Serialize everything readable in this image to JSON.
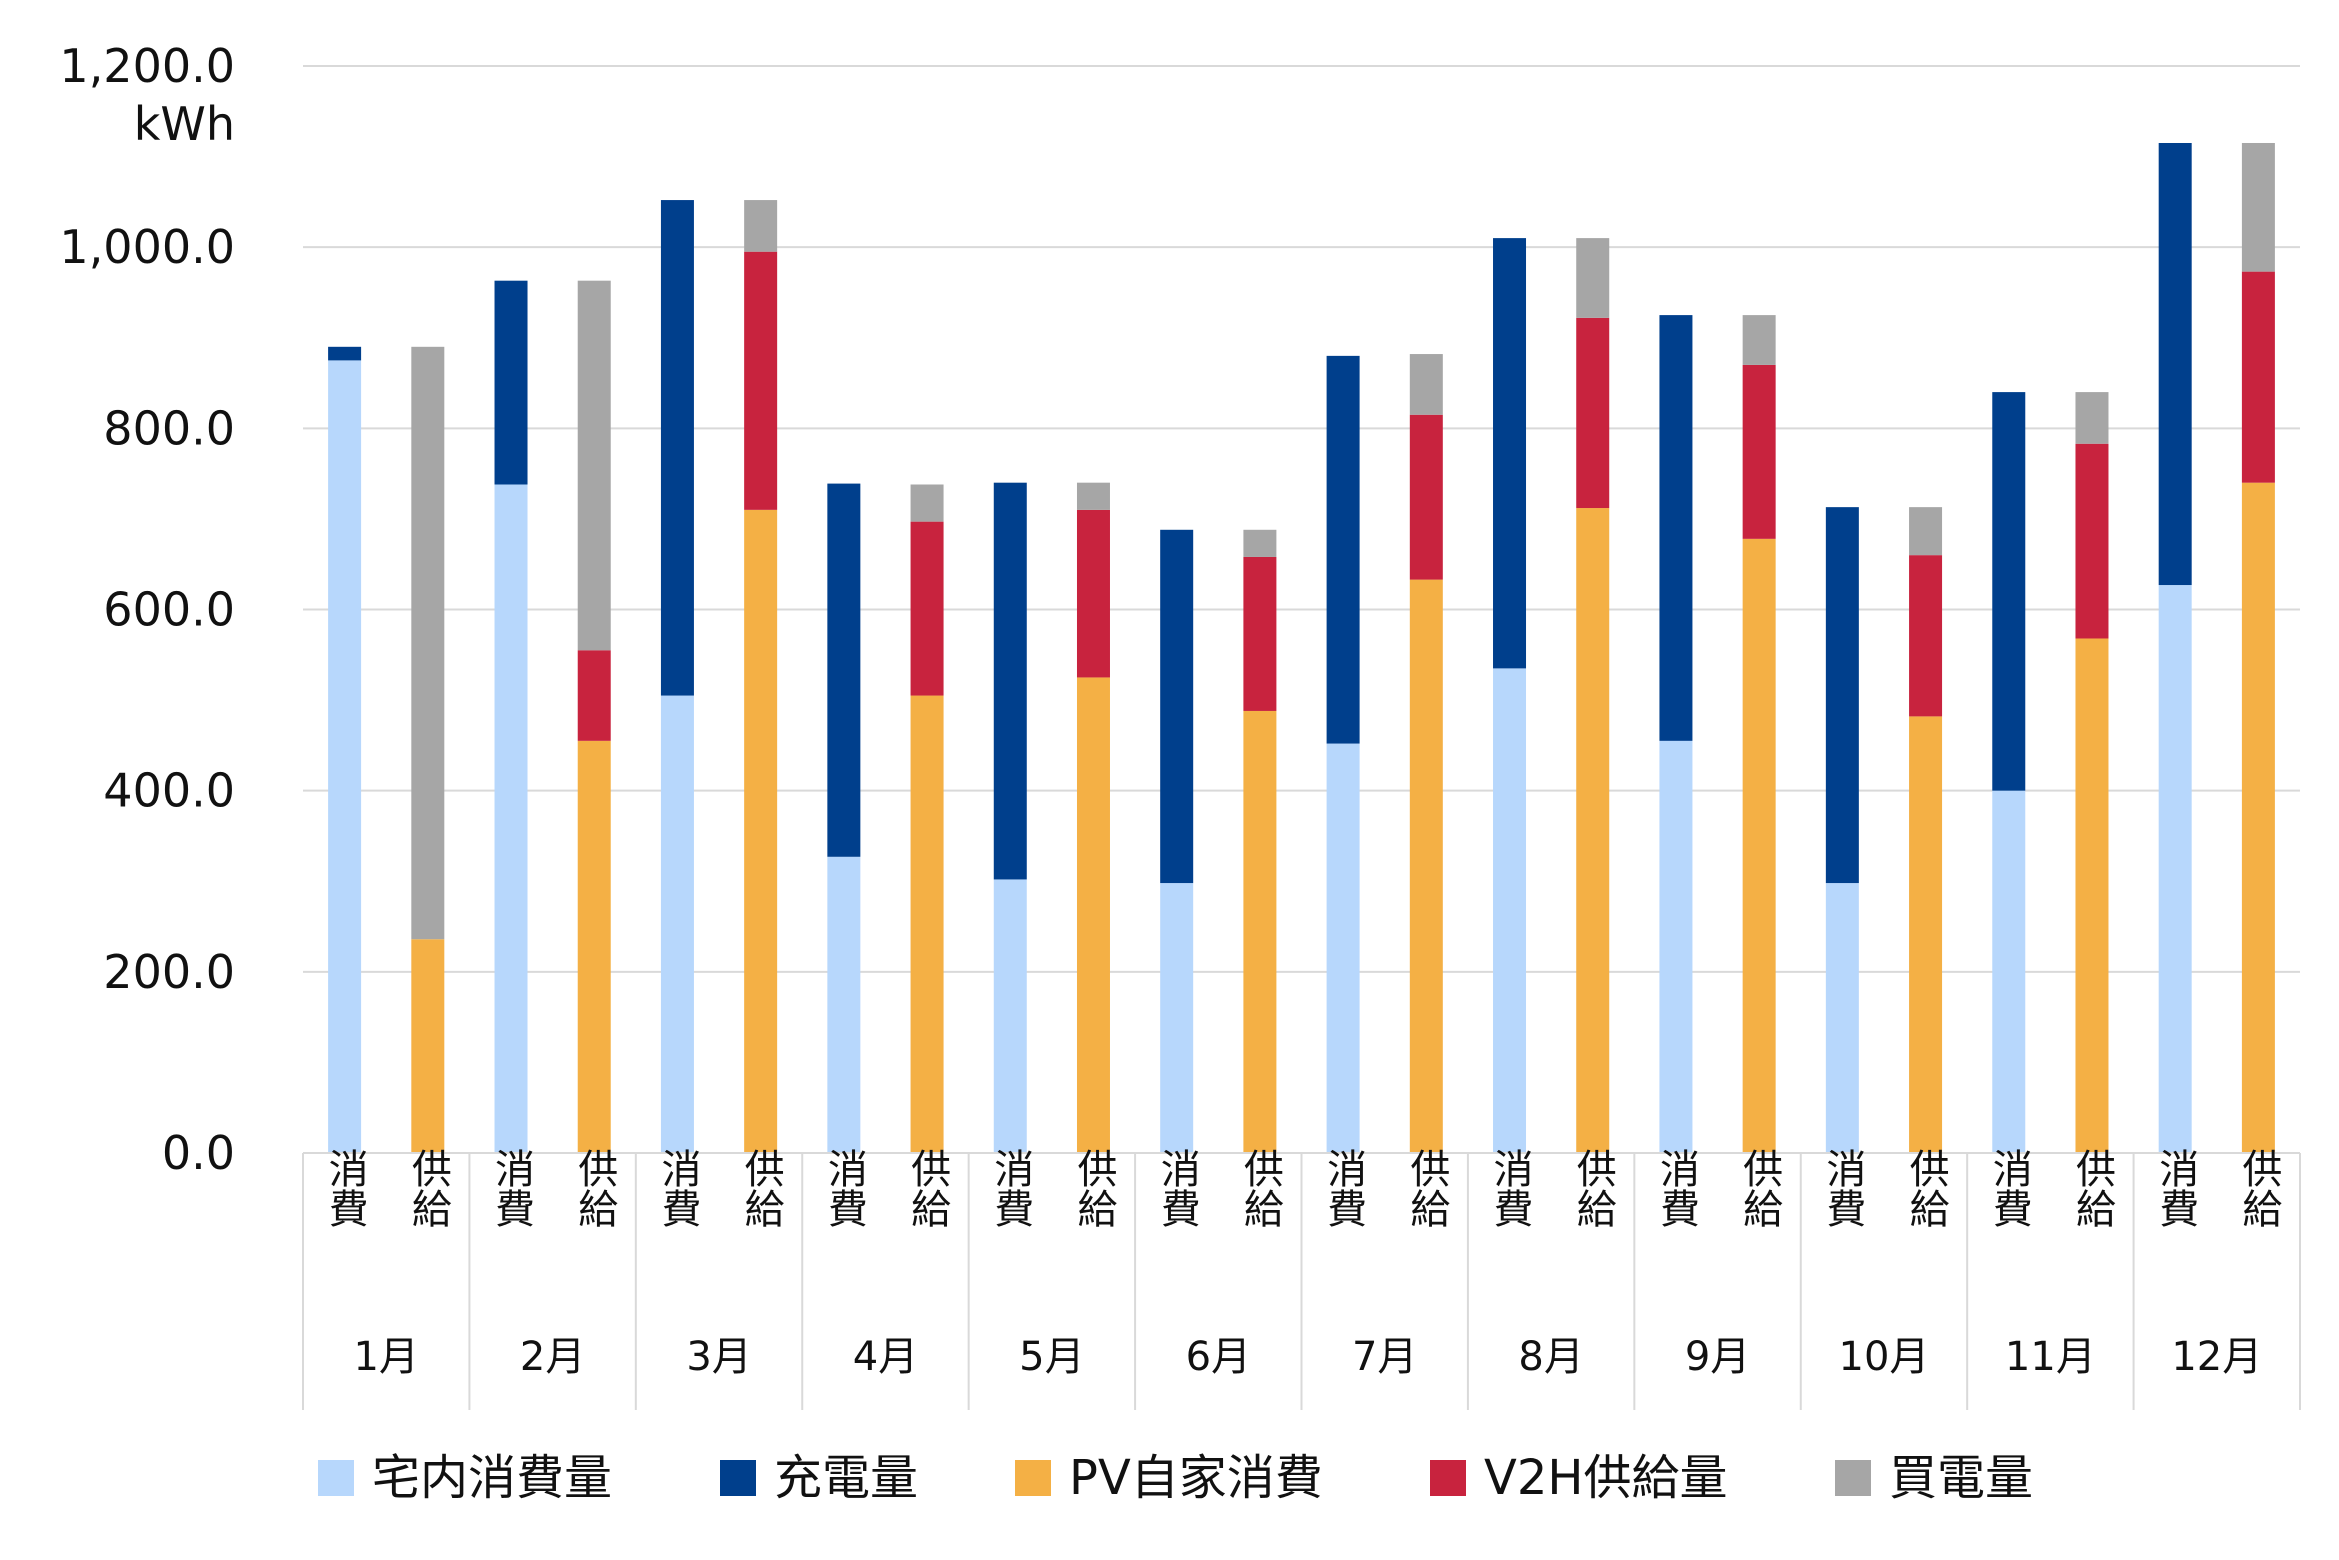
{
  "chart_data": {
    "type": "bar",
    "stacked": true,
    "unit": "kWh",
    "ylim": [
      0,
      1200
    ],
    "yticks": [
      "0.0",
      "200.0",
      "400.0",
      "600.0",
      "800.0",
      "1,000.0",
      "1,200.0"
    ],
    "grid": true,
    "legend_position": "bottom",
    "months": [
      "1月",
      "2月",
      "3月",
      "4月",
      "5月",
      "6月",
      "7月",
      "8月",
      "9月",
      "10月",
      "11月",
      "12月"
    ],
    "sub_categories": [
      "消費",
      "供給"
    ],
    "series": [
      {
        "name": "宅内消費量",
        "color": "#b7d7fc",
        "stack": "消費",
        "values": [
          875,
          738,
          505,
          327,
          302,
          298,
          452,
          535,
          455,
          298,
          400,
          627
        ]
      },
      {
        "name": "充電量",
        "color": "#003f8c",
        "stack": "消費",
        "values": [
          15,
          225,
          547,
          412,
          438,
          390,
          428,
          475,
          470,
          415,
          440,
          488
        ]
      },
      {
        "name": "PV自家消費",
        "color": "#f4b045",
        "stack": "供給",
        "values": [
          236,
          455,
          710,
          505,
          525,
          488,
          633,
          712,
          678,
          482,
          568,
          740
        ]
      },
      {
        "name": "V2H供給量",
        "color": "#c8233e",
        "stack": "供給",
        "values": [
          0,
          100,
          285,
          192,
          185,
          170,
          182,
          210,
          192,
          178,
          215,
          233
        ]
      },
      {
        "name": "買電量",
        "color": "#a6a6a6",
        "stack": "供給",
        "values": [
          654,
          408,
          57,
          41,
          30,
          30,
          67,
          88,
          55,
          53,
          57,
          142
        ]
      }
    ]
  }
}
